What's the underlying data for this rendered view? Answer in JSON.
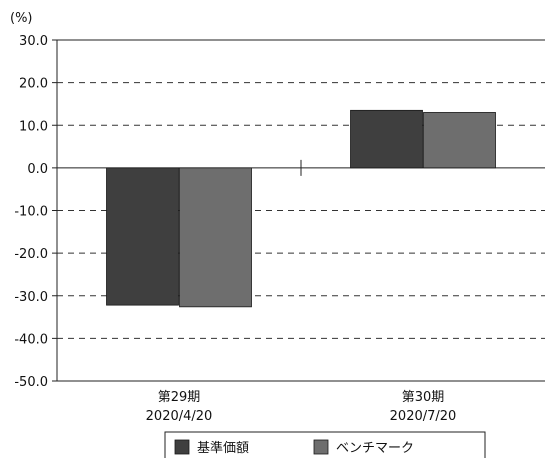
{
  "chart_data": {
    "type": "bar",
    "unit_label": "(%)",
    "categories": [
      "第29期",
      "第30期"
    ],
    "category_dates": [
      "2020/4/20",
      "2020/7/20"
    ],
    "series": [
      {
        "name": "基準価額",
        "values": [
          -32.2,
          13.5
        ]
      },
      {
        "name": "ベンチマーク",
        "values": [
          -32.6,
          13.0
        ]
      }
    ],
    "ylim": [
      -50,
      30
    ],
    "yticks": [
      "30.0",
      "20.0",
      "10.0",
      "0.0",
      "-10.0",
      "-20.0",
      "-30.0",
      "-40.0",
      "-50.0"
    ],
    "ytick_values": [
      30,
      20,
      10,
      0,
      -10,
      -20,
      -30,
      -40,
      -50
    ],
    "grid": "dashed-horizontal",
    "legend_position": "bottom",
    "colors": {
      "series_0": "#3f3f3f",
      "series_1": "#6e6e6e",
      "axis": "#222222",
      "grid": "#333333"
    }
  }
}
